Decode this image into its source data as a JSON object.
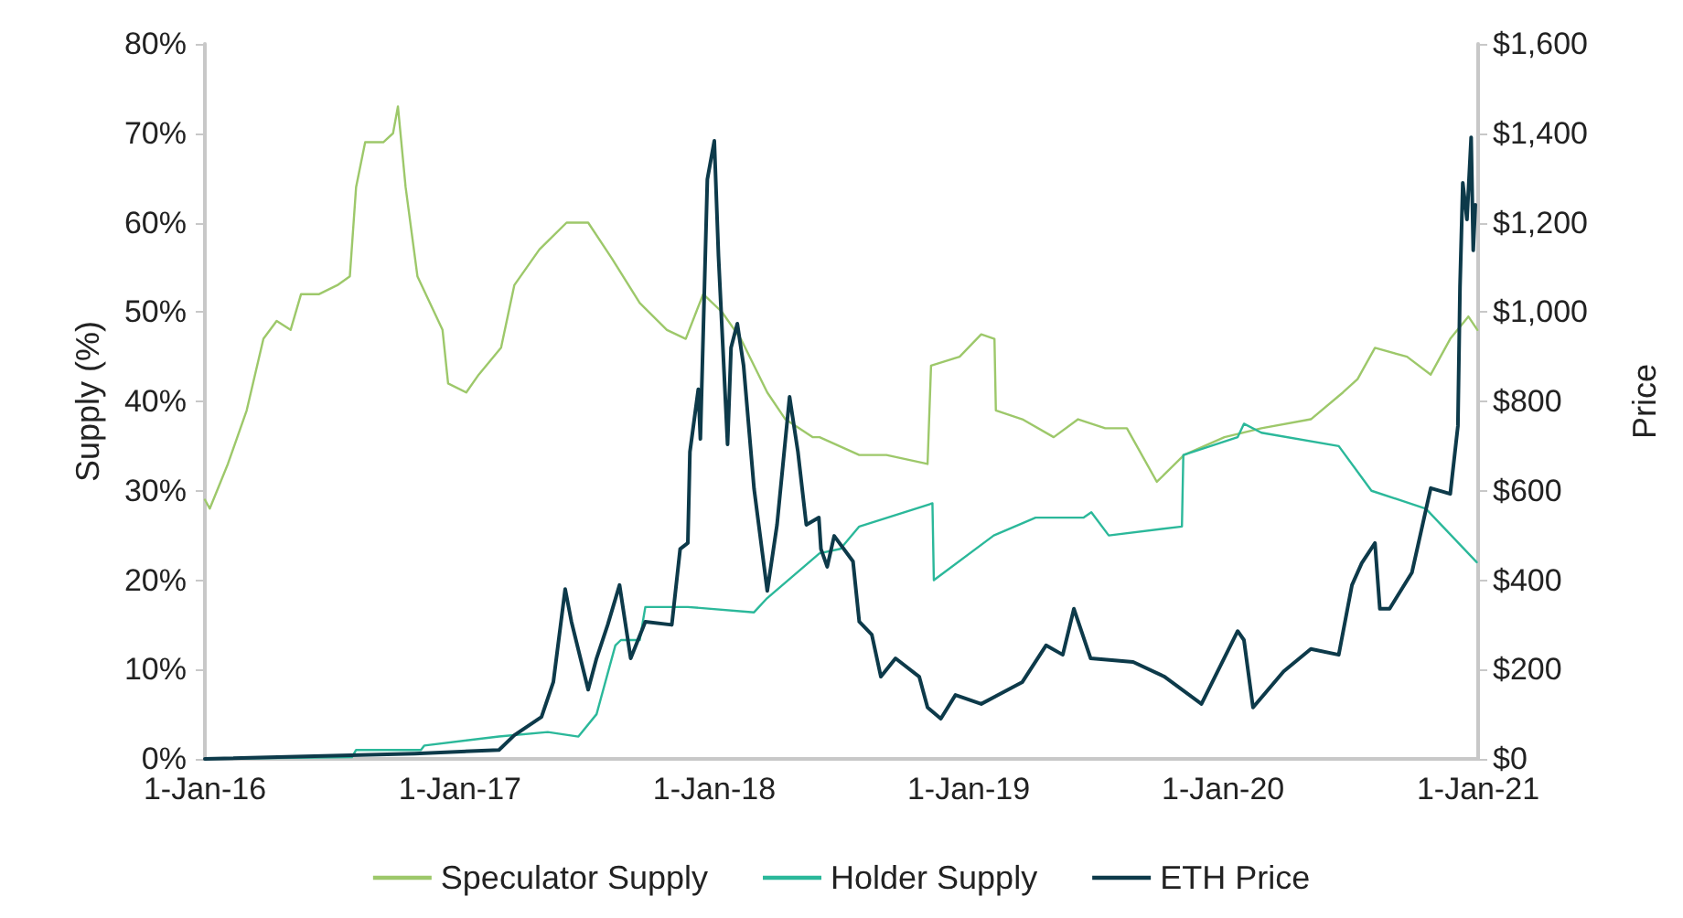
{
  "chart_data": {
    "type": "line",
    "ylabel": "Supply (%)",
    "y2label": "Price",
    "xlim": [
      "2016-01-01",
      "2021-01-01"
    ],
    "xticks": [
      {
        "value": "2016-01-01",
        "label": "1-Jan-16"
      },
      {
        "value": "2017-01-01",
        "label": "1-Jan-17"
      },
      {
        "value": "2018-01-01",
        "label": "1-Jan-18"
      },
      {
        "value": "2019-01-01",
        "label": "1-Jan-19"
      },
      {
        "value": "2020-01-01",
        "label": "1-Jan-20"
      },
      {
        "value": "2021-01-01",
        "label": "1-Jan-21"
      }
    ],
    "ylim": [
      0,
      80
    ],
    "yticks": [
      {
        "value": 0,
        "label": "0%"
      },
      {
        "value": 10,
        "label": "10%"
      },
      {
        "value": 20,
        "label": "20%"
      },
      {
        "value": 30,
        "label": "30%"
      },
      {
        "value": 40,
        "label": "40%"
      },
      {
        "value": 50,
        "label": "50%"
      },
      {
        "value": 60,
        "label": "60%"
      },
      {
        "value": 70,
        "label": "70%"
      },
      {
        "value": 80,
        "label": "80%"
      }
    ],
    "y2lim": [
      0,
      1600
    ],
    "y2ticks": [
      {
        "value": 0,
        "label": "$0"
      },
      {
        "value": 200,
        "label": "$200"
      },
      {
        "value": 400,
        "label": "$400"
      },
      {
        "value": 600,
        "label": "$600"
      },
      {
        "value": 800,
        "label": "$800"
      },
      {
        "value": 1000,
        "label": "$1,000"
      },
      {
        "value": 1200,
        "label": "$1,200"
      },
      {
        "value": 1400,
        "label": "$1,400"
      },
      {
        "value": 1600,
        "label": "$1,600"
      }
    ],
    "grid": false,
    "legend": "bottom",
    "marker": "none",
    "line_style": "solid",
    "series": [
      {
        "name": "Speculator Supply",
        "color": "#9dc86a",
        "x": [
          "2016-01-01",
          "2016-01-08",
          "2016-02-03",
          "2016-03-01",
          "2016-03-25",
          "2016-04-13",
          "2016-05-03",
          "2016-05-18",
          "2016-06-13",
          "2016-07-09",
          "2016-07-27",
          "2016-08-05",
          "2016-08-18",
          "2016-09-13",
          "2016-09-27",
          "2016-10-04",
          "2016-10-15",
          "2016-11-01",
          "2016-11-19",
          "2016-12-07",
          "2016-12-15",
          "2017-01-10",
          "2017-01-28",
          "2017-03-01",
          "2017-03-20",
          "2017-04-25",
          "2017-06-03",
          "2017-07-04",
          "2017-08-07",
          "2017-09-16",
          "2017-10-25",
          "2017-11-21",
          "2017-12-16",
          "2018-01-12",
          "2018-02-08",
          "2018-03-18",
          "2018-04-13",
          "2018-05-22",
          "2018-06-01",
          "2018-07-28",
          "2018-09-05",
          "2018-11-03",
          "2018-11-08",
          "2018-12-19",
          "2019-01-19",
          "2019-02-07",
          "2019-02-09",
          "2019-03-19",
          "2019-05-03",
          "2019-06-07",
          "2019-07-16",
          "2019-08-16",
          "2019-09-28",
          "2019-11-06",
          "2020-01-03",
          "2020-02-25",
          "2020-05-06",
          "2020-06-21",
          "2020-07-12",
          "2020-08-06",
          "2020-09-21",
          "2020-10-25",
          "2020-11-22",
          "2020-12-18",
          "2020-12-31"
        ],
        "values": [
          29,
          28,
          33,
          39,
          47,
          49,
          48,
          52,
          52,
          53,
          54,
          64,
          69,
          69,
          70,
          73,
          64,
          54,
          51,
          48,
          42,
          41,
          43,
          46,
          53,
          57,
          60,
          60,
          56,
          51,
          48,
          47,
          52,
          50,
          47,
          41,
          38,
          36,
          36,
          34,
          34,
          33,
          44,
          45,
          47.5,
          47,
          39,
          38,
          36,
          38,
          37,
          37,
          31,
          34,
          36,
          37,
          38,
          41,
          42.5,
          46,
          45,
          43,
          47,
          49.5,
          48
        ]
      },
      {
        "name": "Holder Supply",
        "color": "#2bb89a",
        "x": [
          "2016-01-01",
          "2016-07-30",
          "2016-08-05",
          "2016-11-06",
          "2016-11-11",
          "2017-02-26",
          "2017-05-07",
          "2017-06-20",
          "2017-07-16",
          "2017-08-12",
          "2017-08-20",
          "2017-09-16",
          "2017-09-24",
          "2017-11-24",
          "2018-02-27",
          "2018-03-18",
          "2018-06-01",
          "2018-07-01",
          "2018-07-28",
          "2018-11-10",
          "2018-11-12",
          "2019-02-06",
          "2019-04-07",
          "2019-06-15",
          "2019-06-26",
          "2019-07-21",
          "2019-11-03",
          "2019-11-05",
          "2020-01-22",
          "2020-01-31",
          "2020-02-25",
          "2020-06-15",
          "2020-08-01",
          "2020-10-18",
          "2020-12-30"
        ],
        "values": [
          0,
          0.2,
          1,
          1,
          1.5,
          2.5,
          3,
          2.5,
          5,
          12.7,
          13.3,
          13.3,
          17,
          17,
          16.4,
          18,
          23,
          23.5,
          26,
          28.6,
          20,
          25,
          27,
          27,
          27.6,
          25,
          26,
          34,
          36,
          37.5,
          36.5,
          35,
          30,
          28,
          22
        ]
      },
      {
        "name": "ETH Price",
        "color": "#0d3a4a",
        "axis": "y2",
        "x": [
          "2016-01-01",
          "2016-10-28",
          "2017-02-26",
          "2017-03-20",
          "2017-04-28",
          "2017-05-15",
          "2017-06-01",
          "2017-06-10",
          "2017-07-04",
          "2017-07-16",
          "2017-08-01",
          "2017-08-18",
          "2017-09-03",
          "2017-09-24",
          "2017-11-01",
          "2017-11-13",
          "2017-11-24",
          "2017-11-27",
          "2017-12-09",
          "2017-12-12",
          "2017-12-22",
          "2018-01-01",
          "2018-01-07",
          "2018-01-20",
          "2018-01-25",
          "2018-02-03",
          "2018-02-12",
          "2018-02-27",
          "2018-03-18",
          "2018-04-01",
          "2018-04-19",
          "2018-05-01",
          "2018-05-13",
          "2018-05-31",
          "2018-06-03",
          "2018-06-12",
          "2018-06-22",
          "2018-07-19",
          "2018-07-28",
          "2018-08-15",
          "2018-08-28",
          "2018-09-18",
          "2018-10-22",
          "2018-11-03",
          "2018-11-22",
          "2018-12-13",
          "2019-01-19",
          "2019-03-19",
          "2019-04-22",
          "2019-05-16",
          "2019-06-01",
          "2019-06-25",
          "2019-08-25",
          "2019-10-09",
          "2019-12-01",
          "2020-01-22",
          "2020-01-31",
          "2020-02-13",
          "2020-03-28",
          "2020-05-06",
          "2020-06-15",
          "2020-07-04",
          "2020-07-18",
          "2020-08-06",
          "2020-08-13",
          "2020-08-27",
          "2020-09-28",
          "2020-10-25",
          "2020-11-22",
          "2020-12-03",
          "2020-12-06",
          "2020-12-10",
          "2020-12-16",
          "2020-12-22",
          "2020-12-25",
          "2020-12-28"
        ],
        "values": [
          0,
          12,
          20,
          53,
          94,
          172,
          380,
          307,
          155,
          225,
          300,
          389,
          225,
          307,
          300,
          470,
          483,
          687,
          827,
          716,
          1297,
          1383,
          1125,
          704,
          920,
          974,
          880,
          605,
          376,
          524,
          810,
          687,
          524,
          540,
          470,
          430,
          499,
          442,
          307,
          278,
          184,
          225,
          184,
          115,
          90,
          143,
          123,
          172,
          254,
          233,
          336,
          225,
          217,
          184,
          123,
          286,
          266,
          115,
          196,
          246,
          233,
          389,
          438,
          483,
          336,
          336,
          417,
          606,
          593,
          745,
          1056,
          1289,
          1207,
          1391,
          1138,
          1240
        ]
      }
    ]
  }
}
